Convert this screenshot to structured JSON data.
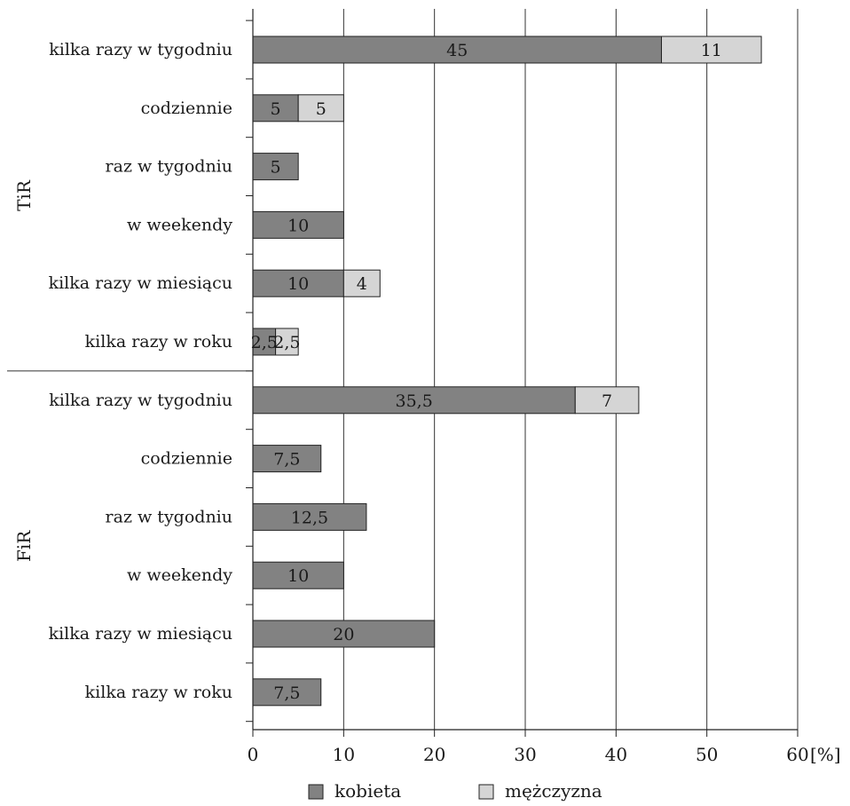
{
  "chart_data": {
    "type": "bar",
    "orientation": "horizontal",
    "stacked": true,
    "title": "",
    "xlabel": "",
    "ylabel": "",
    "unit": "[%]",
    "xlim": [
      0,
      60
    ],
    "x_ticks": [
      "0",
      "10",
      "20",
      "30",
      "40",
      "50",
      "60"
    ],
    "grid": true,
    "legend_position": "bottom",
    "series": [
      {
        "name": "kobieta",
        "color": "#828282"
      },
      {
        "name": "mężczyzna",
        "color": "#d5d5d5"
      }
    ],
    "groups": [
      {
        "name": "TiR",
        "rows": [
          {
            "category": "kilka razy w tygodniu",
            "values": [
              45,
              11
            ],
            "labels": [
              "45",
              "11"
            ]
          },
          {
            "category": "codziennie",
            "values": [
              5,
              5
            ],
            "labels": [
              "5",
              "5"
            ]
          },
          {
            "category": "raz w tygodniu",
            "values": [
              5,
              0
            ],
            "labels": [
              "5",
              ""
            ]
          },
          {
            "category": "w weekendy",
            "values": [
              10,
              0
            ],
            "labels": [
              "10",
              ""
            ]
          },
          {
            "category": "kilka razy w miesiącu",
            "values": [
              10,
              4
            ],
            "labels": [
              "10",
              "4"
            ]
          },
          {
            "category": "kilka razy w roku",
            "values": [
              2.5,
              2.5
            ],
            "labels": [
              "2,5",
              "2,5"
            ]
          }
        ]
      },
      {
        "name": "FiR",
        "rows": [
          {
            "category": "kilka razy w tygodniu",
            "values": [
              35.5,
              7
            ],
            "labels": [
              "35,5",
              "7"
            ]
          },
          {
            "category": "codziennie",
            "values": [
              7.5,
              0
            ],
            "labels": [
              "7,5",
              ""
            ]
          },
          {
            "category": "raz w tygodniu",
            "values": [
              12.5,
              0
            ],
            "labels": [
              "12,5",
              ""
            ]
          },
          {
            "category": "w weekendy",
            "values": [
              10,
              0
            ],
            "labels": [
              "10",
              ""
            ]
          },
          {
            "category": "kilka razy w miesiącu",
            "values": [
              20,
              0
            ],
            "labels": [
              "20",
              ""
            ]
          },
          {
            "category": "kilka razy w roku",
            "values": [
              7.5,
              0
            ],
            "labels": [
              "7,5",
              ""
            ]
          }
        ]
      }
    ]
  }
}
